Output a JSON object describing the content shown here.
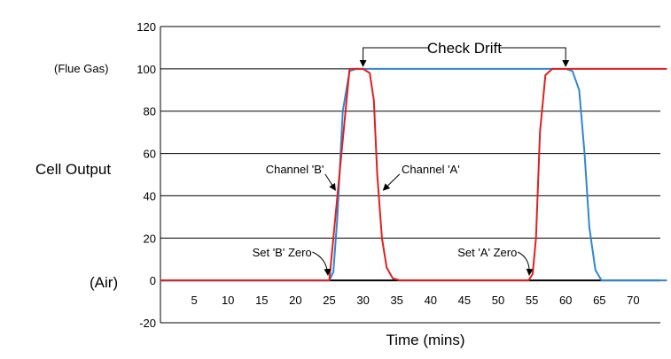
{
  "chart_data": {
    "type": "line",
    "xlabel": "Time (mins)",
    "ylabel": "Cell Output",
    "xlim": [
      0,
      75
    ],
    "ylim": [
      -20,
      120
    ],
    "x_ticks": [
      5,
      10,
      15,
      20,
      25,
      30,
      35,
      40,
      45,
      50,
      55,
      60,
      65,
      70
    ],
    "y_ticks": [
      -20,
      0,
      20,
      40,
      60,
      80,
      100,
      120
    ],
    "grid": "horizontal",
    "y_annotations": {
      "top": "(Flue Gas)",
      "bottom": "(Air)"
    },
    "series": [
      {
        "color": "#2f86d6",
        "x": [
          0,
          25,
          25.6,
          26.2,
          27,
          28,
          29,
          30,
          31,
          32,
          35,
          40,
          45,
          50,
          55,
          58,
          59,
          60,
          61,
          62,
          62.8,
          63.5,
          64.4,
          65.3,
          75
        ],
        "y": [
          0,
          0,
          4,
          30,
          80,
          99,
          100,
          100,
          100,
          100,
          100,
          100,
          100,
          100,
          100,
          100,
          100,
          100,
          99,
          90,
          60,
          25,
          5,
          0,
          0
        ]
      },
      {
        "color": "#e02020",
        "x": [
          0,
          25,
          28,
          29,
          30,
          31,
          31.6,
          32.1,
          32.8,
          33.5,
          34.4,
          35.5,
          40,
          45,
          50,
          54.5,
          55.1,
          55.6,
          56.2,
          57,
          58,
          59,
          60,
          61,
          62,
          65,
          70,
          75
        ],
        "y": [
          0,
          0,
          100,
          100,
          100,
          98,
          85,
          50,
          20,
          6,
          1,
          0,
          0,
          0,
          0,
          0,
          3,
          20,
          70,
          97,
          100,
          100,
          100,
          100,
          100,
          100,
          100,
          100
        ]
      }
    ],
    "annotations": [
      {
        "text": "Check Drift"
      },
      {
        "text": "Channel 'B'"
      },
      {
        "text": "Channel 'A'"
      },
      {
        "text": "Set 'B' Zero"
      },
      {
        "text": "Set 'A' Zero"
      }
    ]
  }
}
